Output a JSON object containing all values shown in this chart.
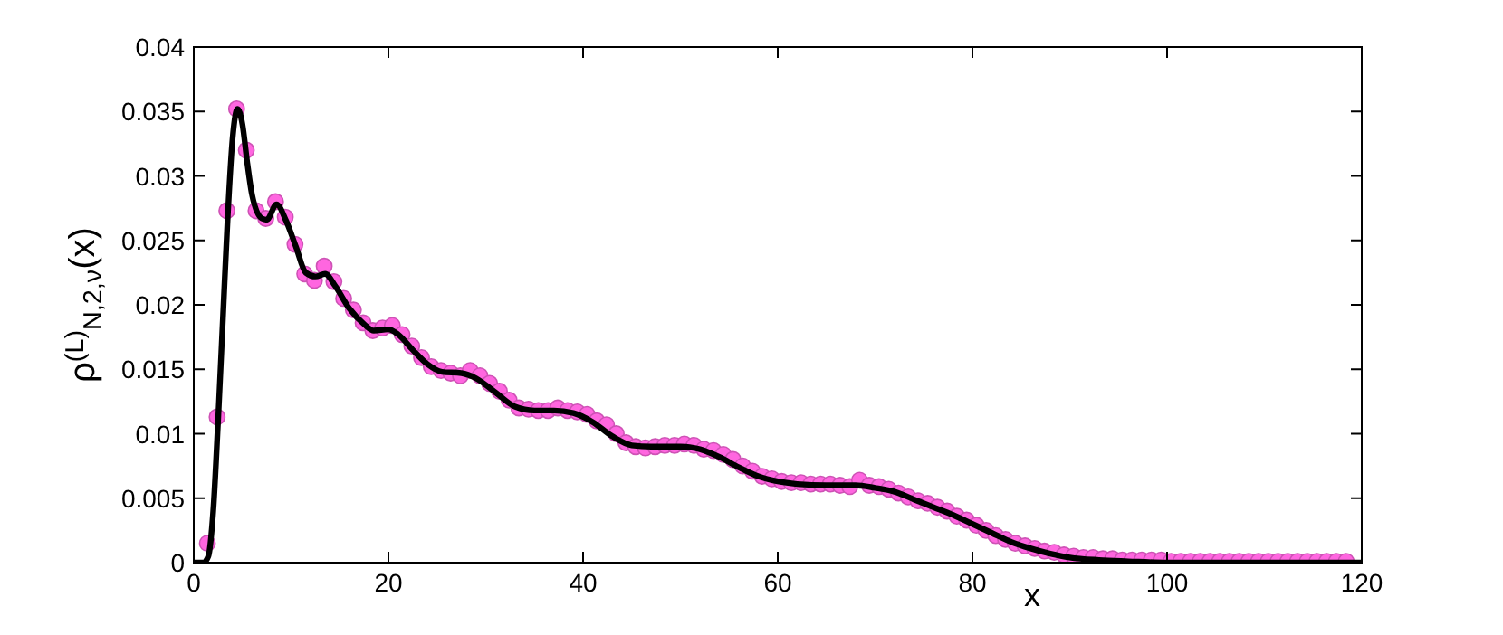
{
  "chart_data": {
    "type": "scatter",
    "xlabel": "x",
    "ylabel": "ρ$^{(L)}$$_{N,2,ν}$(x)",
    "xlim": [
      0,
      120
    ],
    "xticks": [
      0,
      20,
      40,
      60,
      80,
      100,
      120
    ],
    "ylim": [
      0,
      0.04
    ],
    "yticks": [
      0,
      0.005,
      0.01,
      0.015,
      0.02,
      0.025,
      0.03,
      0.035,
      0.04
    ],
    "grid": false,
    "series": [
      {
        "color": "#ff66e0",
        "marker": "circle",
        "x": [
          1.4,
          2.4,
          3.4,
          4.4,
          5.4,
          6.4,
          7.4,
          8.4,
          9.4,
          10.4,
          11.4,
          12.4,
          13.4,
          14.4,
          15.4,
          16.4,
          17.4,
          18.4,
          19.4,
          20.4,
          21.4,
          22.4,
          23.4,
          24.4,
          25.4,
          26.4,
          27.4,
          28.4,
          29.4,
          30.4,
          31.4,
          32.4,
          33.4,
          34.4,
          35.4,
          36.4,
          37.4,
          38.4,
          39.4,
          40.4,
          41.4,
          42.4,
          43.4,
          44.4,
          45.4,
          46.4,
          47.4,
          48.4,
          49.4,
          50.4,
          51.4,
          52.4,
          53.4,
          54.4,
          55.4,
          56.4,
          57.4,
          58.4,
          59.4,
          60.4,
          61.4,
          62.4,
          63.4,
          64.4,
          65.4,
          66.4,
          67.4,
          68.4,
          69.4,
          70.4,
          71.4,
          72.4,
          73.4,
          74.4,
          75.4,
          76.4,
          77.4,
          78.4,
          79.4,
          80.4,
          81.4,
          82.4,
          83.4,
          84.4,
          85.4,
          86.4,
          87.4,
          88.4,
          89.4,
          90.4,
          91.4,
          92.4,
          93.4,
          94.4,
          95.4,
          96.4,
          97.4,
          98.4,
          99.4,
          100.4,
          101.4,
          102.4,
          103.4,
          104.4,
          105.4,
          106.4,
          107.4,
          108.4,
          109.4,
          110.4,
          111.4,
          112.4,
          113.4,
          114.4,
          115.4,
          116.4,
          117.4,
          118.4
        ],
        "values": [
          0.0015,
          0.0113,
          0.0273,
          0.0352,
          0.032,
          0.0273,
          0.0267,
          0.028,
          0.0268,
          0.0247,
          0.0224,
          0.0219,
          0.023,
          0.0218,
          0.0205,
          0.0196,
          0.0186,
          0.018,
          0.0182,
          0.0184,
          0.0177,
          0.0168,
          0.0159,
          0.0152,
          0.0149,
          0.0147,
          0.0145,
          0.0149,
          0.0145,
          0.0139,
          0.0133,
          0.0126,
          0.012,
          0.0119,
          0.0118,
          0.0118,
          0.012,
          0.0118,
          0.0117,
          0.0115,
          0.011,
          0.0107,
          0.01,
          0.0093,
          0.009,
          0.0089,
          0.009,
          0.0091,
          0.0091,
          0.0092,
          0.0091,
          0.0088,
          0.0087,
          0.0084,
          0.008,
          0.0075,
          0.0071,
          0.0067,
          0.0065,
          0.0063,
          0.0062,
          0.0062,
          0.0061,
          0.0061,
          0.0061,
          0.006,
          0.0059,
          0.0064,
          0.006,
          0.0059,
          0.0057,
          0.0054,
          0.0051,
          0.0048,
          0.0046,
          0.0043,
          0.004,
          0.0036,
          0.0033,
          0.0029,
          0.0025,
          0.0021,
          0.0018,
          0.0015,
          0.0013,
          0.0011,
          0.0009,
          0.0008,
          0.0006,
          0.0005,
          0.0004,
          0.0004,
          0.0003,
          0.0003,
          0.0002,
          0.0002,
          0.0002,
          0.0002,
          0.0002,
          0.0001,
          0.0001,
          0.0001,
          0.0001,
          0.0001,
          0.0001,
          0.0001,
          0.0001,
          0.0001,
          0.0001,
          0.0001,
          0.0001,
          0.0001,
          0.0001,
          0.0001,
          0.0001,
          0.0001,
          0.0001,
          0.0001
        ]
      },
      {
        "type": "line",
        "color": "#000000",
        "marker": "none",
        "line_style": "solid",
        "x": [
          0,
          1,
          1.5,
          2,
          2.5,
          3,
          3.5,
          4,
          4.5,
          5,
          5.5,
          6,
          7,
          7.5,
          8.5,
          9.5,
          10.5,
          11.5,
          12.5,
          13.5,
          14.5,
          16,
          17.5,
          18.5,
          20,
          21,
          22.5,
          24,
          25.5,
          27.5,
          29,
          31,
          33,
          35,
          37,
          39,
          41,
          43,
          45,
          47,
          50,
          52,
          54,
          56,
          58,
          60,
          62,
          65,
          68,
          70,
          72,
          74,
          76,
          78,
          80,
          82,
          84,
          86,
          88,
          90,
          93,
          96,
          100,
          110,
          120
        ],
        "values": [
          0,
          0,
          0.0005,
          0.004,
          0.011,
          0.019,
          0.027,
          0.033,
          0.0352,
          0.034,
          0.031,
          0.0285,
          0.0267,
          0.0266,
          0.0278,
          0.0265,
          0.0245,
          0.0225,
          0.0222,
          0.0224,
          0.0215,
          0.0197,
          0.0185,
          0.018,
          0.0181,
          0.0177,
          0.0165,
          0.0154,
          0.0148,
          0.0147,
          0.0143,
          0.0132,
          0.0121,
          0.0118,
          0.0118,
          0.0116,
          0.0109,
          0.0098,
          0.0091,
          0.009,
          0.009,
          0.0088,
          0.0082,
          0.0074,
          0.0067,
          0.0063,
          0.0061,
          0.006,
          0.006,
          0.0058,
          0.0055,
          0.0049,
          0.0043,
          0.0037,
          0.003,
          0.0023,
          0.0016,
          0.0011,
          0.0007,
          0.0004,
          0.0002,
          0.0001,
          0,
          0,
          0
        ]
      }
    ]
  }
}
